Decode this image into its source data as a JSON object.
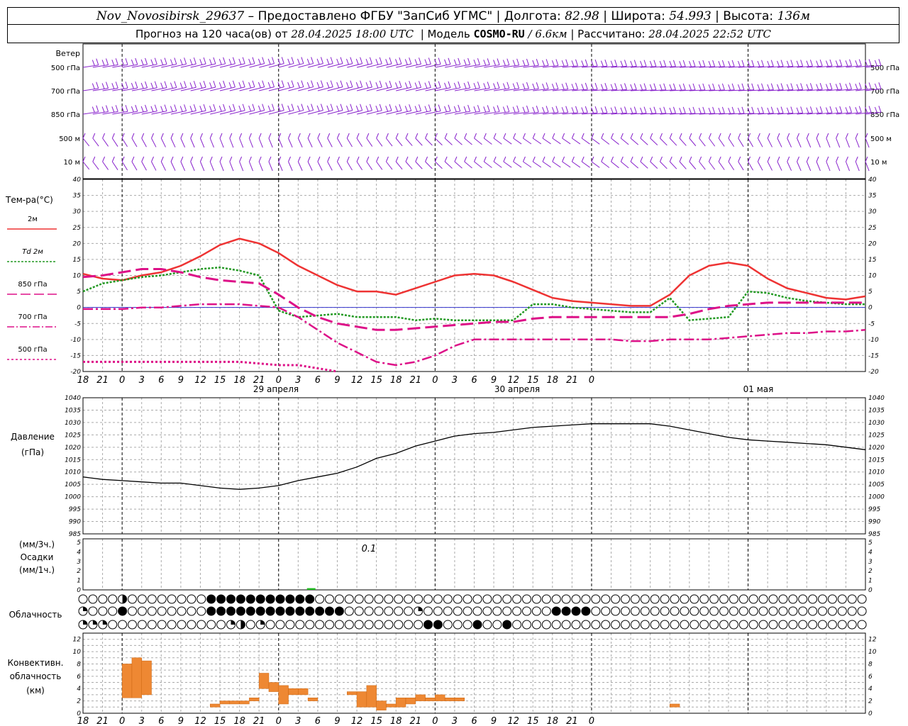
{
  "header": {
    "station": "Nov_Novosibirsk_29637",
    "dash": "–",
    "provider_label": "Предоставлено ФГБУ \"ЗапСиб УГМС\"",
    "lon_label": "Долгота:",
    "lon_value": "82.98",
    "lat_label": "Широта:",
    "lat_value": "54.993",
    "alt_label": "Высота:",
    "alt_value": "136м",
    "forecast_label": "Прогноз на 120 часа(ов) от",
    "forecast_start": "28.04.2025 18:00 UTC",
    "model_label": "Модель",
    "model_name": "COSMO-RU",
    "model_res": "/ 6.6км",
    "calc_label": "Рассчитано:",
    "calc_time": "28.04.2025 22:52 UTC"
  },
  "time_axis": {
    "hour_labels": [
      "18",
      "21",
      "0",
      "3",
      "6",
      "9",
      "12",
      "15",
      "18",
      "21",
      "0",
      "3",
      "6",
      "9",
      "12",
      "15",
      "18",
      "21",
      "0",
      "3",
      "6",
      "9",
      "12",
      "15",
      "18",
      "21",
      "0"
    ],
    "day_labels": [
      "29 апреля",
      "30 апреля",
      "01 мая"
    ]
  },
  "wind_panel": {
    "title": "Ветер",
    "levels": [
      "500 гПа",
      "700 гПа",
      "850 гПа",
      "500 м",
      "10  м"
    ]
  },
  "temp_panel": {
    "title": "Тем-ра(°C)",
    "legend": [
      {
        "label": "2м",
        "color": "#ee3333"
      },
      {
        "label": "Td  2м",
        "color": "#229922"
      },
      {
        "label": "850 гПа",
        "color": "#dd1188"
      },
      {
        "label": "700 гПа",
        "color": "#dd1188"
      },
      {
        "label": "500 гПа",
        "color": "#dd1188"
      }
    ],
    "ticks": [
      "40",
      "35",
      "30",
      "25",
      "20",
      "15",
      "10",
      "5",
      "0",
      "-5",
      "-10",
      "-15",
      "-20"
    ]
  },
  "pressure_panel": {
    "title": "Давление",
    "unit": "(гПа)",
    "ticks": [
      "1040",
      "1035",
      "1030",
      "1025",
      "1020",
      "1015",
      "1010",
      "1005",
      "1000",
      "995",
      "990",
      "985"
    ]
  },
  "precip_panel": {
    "unit3": "(мм/3ч.)",
    "title": "Осадки",
    "unit1": "(мм/1ч.)",
    "ticks": [
      "5",
      "4",
      "3",
      "2",
      "1",
      "0"
    ],
    "annotation": "0.1"
  },
  "cloud_panel": {
    "title": "Облачность"
  },
  "conv_panel": {
    "title1": "Конвективн.",
    "title2": "облачность",
    "unit": "(км)",
    "ticks": [
      "12",
      "10",
      "8",
      "6",
      "4",
      "2",
      "0"
    ]
  },
  "chart_data": [
    {
      "type": "line",
      "title": "Тем-ра(°C)",
      "ylim": [
        -20,
        40
      ],
      "x_hours": [
        0,
        3,
        6,
        9,
        12,
        15,
        18,
        21,
        24,
        27,
        30,
        33,
        36,
        39,
        42,
        45,
        48,
        51,
        54,
        57,
        60,
        63,
        66,
        69,
        72,
        75,
        78,
        81,
        84,
        87,
        90,
        93,
        96,
        99,
        102,
        105,
        108,
        111,
        114,
        117,
        120
      ],
      "series": [
        {
          "name": "2м",
          "color": "#ee3333",
          "values": [
            10.5,
            9,
            8.5,
            10,
            11,
            13,
            16,
            19.5,
            21.5,
            20,
            17,
            13,
            10,
            7,
            5,
            5,
            4,
            6,
            8,
            10,
            10.5,
            10,
            8,
            5.5,
            3,
            2,
            1.5,
            1,
            0.5,
            0.5,
            4,
            10,
            13,
            14,
            13,
            9,
            6,
            4.5,
            3,
            2.5,
            3.5
          ]
        },
        {
          "name": "Td  2м",
          "color": "#229922",
          "values": [
            5,
            7.5,
            8.5,
            9.5,
            10,
            11,
            12,
            12.5,
            11.5,
            10,
            -1,
            -3,
            -2.5,
            -2,
            -3,
            -3,
            -3,
            -4,
            -3.5,
            -4,
            -4,
            -4,
            -4,
            1,
            1,
            0,
            -0.5,
            -1,
            -1.5,
            -1.5,
            3,
            -4,
            -3.5,
            -3,
            5,
            4.5,
            3,
            2,
            1.5,
            1,
            1
          ]
        },
        {
          "name": "850 гПа",
          "color": "#dd1188",
          "values": [
            9.5,
            10,
            11,
            12,
            12,
            11,
            9.5,
            8.5,
            8,
            7.5,
            4,
            0,
            -3,
            -5,
            -6,
            -7,
            -7,
            -6.5,
            -6,
            -5.5,
            -5,
            -4.5,
            -4.5,
            -3.5,
            -3,
            -3,
            -3,
            -3,
            -3,
            -3,
            -3,
            -2,
            -0.5,
            0.5,
            1,
            1.5,
            1.5,
            1.5,
            1.5,
            1.5,
            1.5
          ]
        },
        {
          "name": "700 гПа",
          "color": "#dd1188",
          "values": [
            -0.5,
            -0.5,
            -0.5,
            0,
            0,
            0.5,
            1,
            1,
            1,
            0.5,
            0,
            -3,
            -7,
            -11,
            -14,
            -17,
            -18,
            -17,
            -15,
            -12,
            -10,
            -10,
            -10,
            -10,
            -10,
            -10,
            -10,
            -10,
            -10.5,
            -10.5,
            -10,
            -10,
            -10,
            -9.5,
            -9,
            -8.5,
            -8,
            -8,
            -7.5,
            -7.5,
            -7
          ]
        },
        {
          "name": "500 гПа",
          "color": "#dd1188",
          "values": [
            -17,
            -17,
            -17,
            -17,
            -17,
            -17,
            -17,
            -17,
            -17,
            -17.5,
            -18,
            -18,
            -19,
            -20,
            null,
            null,
            null,
            null,
            null,
            null,
            null,
            null,
            null,
            null,
            null,
            null,
            null,
            null,
            null,
            null,
            null,
            null,
            null,
            null,
            null,
            null,
            null,
            null,
            null,
            null,
            null
          ]
        }
      ]
    },
    {
      "type": "line",
      "title": "Давление",
      "ylabel": "(гПа)",
      "ylim": [
        985,
        1040
      ],
      "x_hours": [
        0,
        3,
        6,
        9,
        12,
        15,
        18,
        21,
        24,
        27,
        30,
        33,
        36,
        39,
        42,
        45,
        48,
        51,
        54,
        57,
        60,
        63,
        66,
        69,
        72,
        75,
        78,
        81,
        84,
        87,
        90,
        93,
        96,
        99,
        102,
        105,
        108,
        111,
        114,
        117,
        120
      ],
      "series": [
        {
          "name": "",
          "color": "#000000",
          "values": [
            1008,
            1007,
            1006.5,
            1006,
            1005.5,
            1005.5,
            1004.5,
            1003.5,
            1003,
            1003.5,
            1004.5,
            1006.5,
            1008,
            1009.5,
            1012,
            1015.5,
            1017.5,
            1020.5,
            1022.5,
            1024.5,
            1025.5,
            1026,
            1027,
            1028,
            1028.5,
            1029,
            1029.5,
            1029.5,
            1029.5,
            1029.5,
            1028.5,
            1027,
            1025.5,
            1024,
            1023,
            1022.5,
            1022,
            1021.5,
            1021,
            1020,
            1019
          ]
        }
      ]
    },
    {
      "type": "bar",
      "title": "Осадки",
      "ylabel": "(мм/1ч.)",
      "ylim": [
        0,
        5
      ],
      "x_hours": [
        35
      ],
      "values": [
        0.1
      ],
      "color": "#22bb22"
    },
    {
      "type": "bar",
      "title": "Конвективн. облачность",
      "ylabel": "(км)",
      "ylim": [
        0,
        13
      ],
      "bars": [
        [
          4,
          5,
          2.5,
          8
        ],
        [
          5,
          6,
          2.5,
          9
        ],
        [
          6,
          7,
          3,
          8.5
        ],
        [
          13,
          14,
          1,
          1.5
        ],
        [
          14,
          15,
          1.5,
          2
        ],
        [
          15,
          16,
          1.5,
          2
        ],
        [
          16,
          17,
          1.5,
          2
        ],
        [
          17,
          18,
          2,
          2.5
        ],
        [
          18,
          19,
          4,
          6.5
        ],
        [
          19,
          20,
          3.5,
          5
        ],
        [
          20,
          21,
          1.5,
          4.5
        ],
        [
          21,
          22,
          3,
          4
        ],
        [
          22,
          23,
          3,
          4
        ],
        [
          23,
          24,
          2,
          2.5
        ],
        [
          27,
          28,
          3,
          3.5
        ],
        [
          28,
          29,
          1,
          3.5
        ],
        [
          29,
          30,
          1,
          4.5
        ],
        [
          30,
          31,
          0.5,
          2
        ],
        [
          31,
          32,
          1,
          1.5
        ],
        [
          32,
          33,
          1,
          2.5
        ],
        [
          33,
          34,
          1.5,
          2.5
        ],
        [
          34,
          35,
          2,
          3
        ],
        [
          35,
          36,
          2,
          2.5
        ],
        [
          36,
          37,
          2,
          3
        ],
        [
          37,
          38,
          2,
          2.5
        ],
        [
          38,
          39,
          2,
          2.5
        ],
        [
          60,
          61,
          1,
          1.5
        ],
        [
          61,
          62,
          1.5,
          1.5
        ]
      ],
      "color": "#ee8833"
    }
  ],
  "cloud_rows": [
    "0000200000000333333333330000000000000000000000000000000000000000000000000000000000000000000000000000000000000000000000000000000000000000000000000000000000000000000000000000000000000000000000000000000000000000000000000000000000000000000000000000000000000000000000000000000000000000000000000000000000000",
    "1000300000000333333333333330000000100000000000003333000000000000000000000000000000000000000000000000000000000000000000000000000000000000000000000000000000000000000000000000000000000000000000000000000000000000000000000000000000000000000000000000000000000000000000000000000000000000000000000000000000000",
    "1110000000000001201000000000000000033000300300000000000000000000000000000000000000000000000000000000000000000000000000000000000000000000000000000000000000000000000000000000000000000000000000000000000000000000000000000000000000000000000000000000000000000000000000000000000000000000000000000000000000000000"
  ]
}
